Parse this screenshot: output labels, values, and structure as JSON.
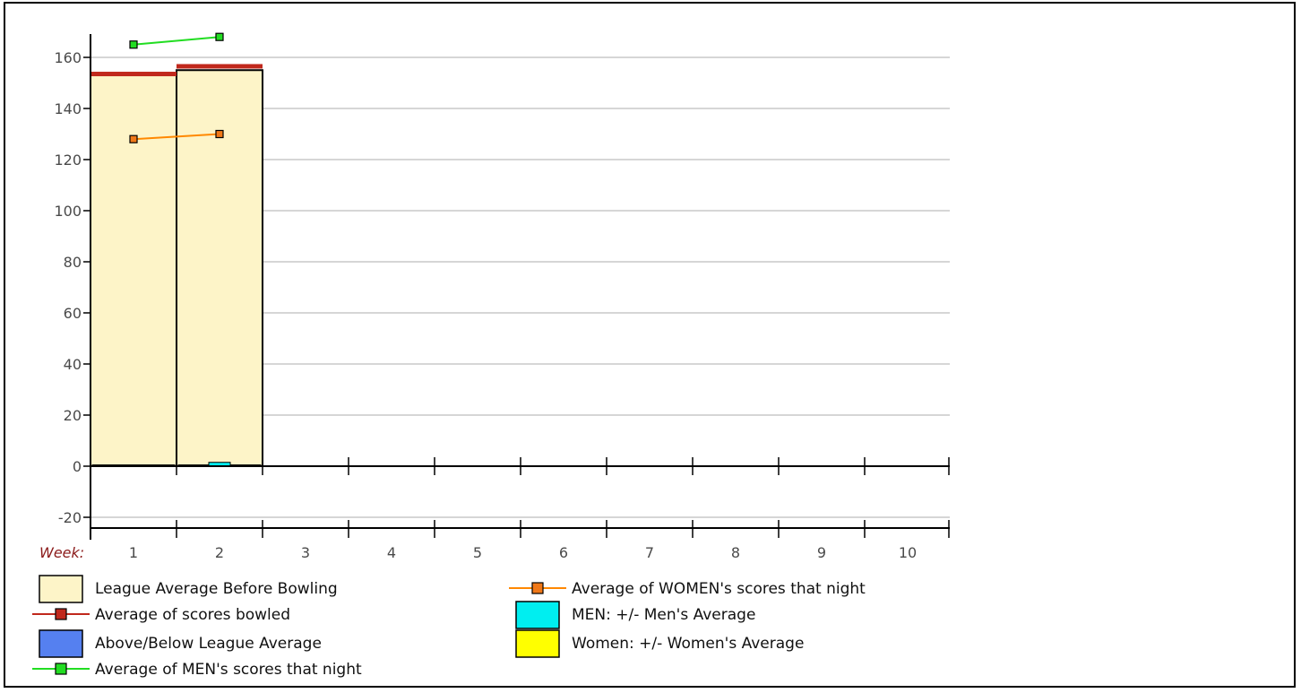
{
  "chart_data": {
    "type": "bar",
    "x_axis_label": "Week:",
    "categories": [
      "1",
      "2",
      "3",
      "4",
      "5",
      "6",
      "7",
      "8",
      "9",
      "10"
    ],
    "y_ticks": [
      -20,
      0,
      20,
      40,
      60,
      80,
      100,
      120,
      140,
      160
    ],
    "ylim": [
      -20,
      160
    ],
    "grid": true,
    "legend_position": "bottom",
    "colors": {
      "league_avg_fill": "#fdf4c8",
      "scores_bowled": "#c0281c",
      "above_below": "#5580f0",
      "men_line": "#22dd22",
      "women_line": "#ff8800",
      "women_marker": "#f07818",
      "men_pm": "#00eef0",
      "women_pm": "#ffff00"
    },
    "series": [
      {
        "name": "League Average Before Bowling",
        "kind": "bar",
        "values": [
          153,
          155,
          null,
          null,
          null,
          null,
          null,
          null,
          null,
          null
        ]
      },
      {
        "name": "Average of scores bowled",
        "kind": "bar-top-line",
        "values": [
          153.5,
          156.5,
          null,
          null,
          null,
          null,
          null,
          null,
          null,
          null
        ]
      },
      {
        "name": "Above/Below League Average",
        "kind": "bar",
        "values": [
          0.5,
          0.5,
          null,
          null,
          null,
          null,
          null,
          null,
          null,
          null
        ]
      },
      {
        "name": "Average of MEN's scores that night",
        "kind": "line",
        "values": [
          165,
          168,
          null,
          null,
          null,
          null,
          null,
          null,
          null,
          null
        ]
      },
      {
        "name": "Average of WOMEN's scores that night",
        "kind": "line",
        "values": [
          128,
          130,
          null,
          null,
          null,
          null,
          null,
          null,
          null,
          null
        ]
      },
      {
        "name": "MEN: +/- Men's Average",
        "kind": "bar",
        "values": [
          null,
          1.5,
          null,
          null,
          null,
          null,
          null,
          null,
          null,
          null
        ]
      },
      {
        "name": "Women: +/- Women's Average",
        "kind": "bar",
        "values": [
          null,
          null,
          null,
          null,
          null,
          null,
          null,
          null,
          null,
          null
        ]
      }
    ],
    "legend": {
      "left": [
        {
          "label": "League Average Before Bowling",
          "symbol": "box",
          "color": "#fdf4c8"
        },
        {
          "label": "Average of scores bowled",
          "symbol": "line-marker",
          "color": "#c0281c"
        },
        {
          "label": "Above/Below League Average",
          "symbol": "box",
          "color": "#5580f0"
        },
        {
          "label": "Average of MEN's scores that night",
          "symbol": "line-marker",
          "color": "#22dd22"
        }
      ],
      "right": [
        {
          "label": "Average of WOMEN's scores that night",
          "symbol": "line-marker",
          "color": "#ff8800"
        },
        {
          "label": "MEN: +/- Men's Average",
          "symbol": "box",
          "color": "#00eef0"
        },
        {
          "label": "Women: +/- Women's Average",
          "symbol": "box",
          "color": "#ffff00"
        }
      ]
    }
  }
}
